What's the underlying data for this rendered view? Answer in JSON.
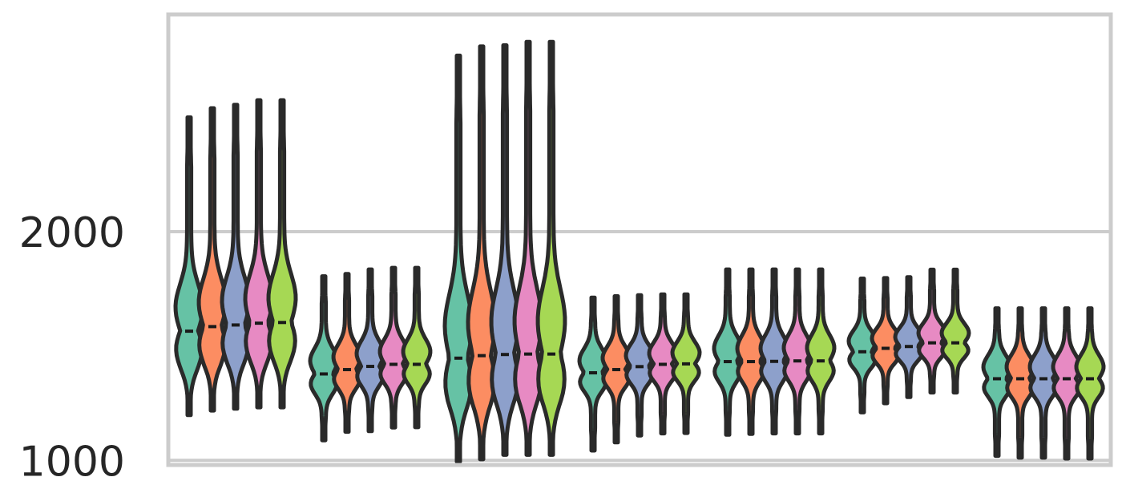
{
  "chart_data": {
    "type": "violin",
    "title": "",
    "xlabel": "",
    "ylabel": "",
    "ylim": [
      980,
      2950
    ],
    "y_ticks": [
      1000,
      2000
    ],
    "grid": true,
    "legend": "none",
    "palette": [
      "#66c2a5",
      "#fc8d62",
      "#8da0cb",
      "#e78ac3",
      "#a6d854"
    ],
    "groups": [
      {
        "violins": [
          {
            "min": 1198,
            "max": 2500,
            "median": 1565
          },
          {
            "min": 1218,
            "max": 2540,
            "median": 1585
          },
          {
            "min": 1226,
            "max": 2555,
            "median": 1592
          },
          {
            "min": 1232,
            "max": 2575,
            "median": 1600
          },
          {
            "min": 1232,
            "max": 2575,
            "median": 1603
          }
        ]
      },
      {
        "violins": [
          {
            "min": 1088,
            "max": 1805,
            "median": 1378
          },
          {
            "min": 1125,
            "max": 1815,
            "median": 1397
          },
          {
            "min": 1128,
            "max": 1835,
            "median": 1411
          },
          {
            "min": 1144,
            "max": 1842,
            "median": 1420
          },
          {
            "min": 1145,
            "max": 1842,
            "median": 1420
          }
        ]
      },
      {
        "violins": [
          {
            "min": 995,
            "max": 2770,
            "median": 1447
          },
          {
            "min": 1005,
            "max": 2810,
            "median": 1458
          },
          {
            "min": 1024,
            "max": 2815,
            "median": 1463
          },
          {
            "min": 1024,
            "max": 2830,
            "median": 1465
          },
          {
            "min": 1024,
            "max": 2830,
            "median": 1465
          }
        ]
      },
      {
        "violins": [
          {
            "min": 1043,
            "max": 1712,
            "median": 1383
          },
          {
            "min": 1079,
            "max": 1718,
            "median": 1397
          },
          {
            "min": 1109,
            "max": 1722,
            "median": 1410
          },
          {
            "min": 1118,
            "max": 1726,
            "median": 1420
          },
          {
            "min": 1120,
            "max": 1726,
            "median": 1422
          }
        ]
      },
      {
        "violins": [
          {
            "min": 1112,
            "max": 1835,
            "median": 1432
          },
          {
            "min": 1116,
            "max": 1835,
            "median": 1432
          },
          {
            "min": 1118,
            "max": 1835,
            "median": 1433
          },
          {
            "min": 1118,
            "max": 1835,
            "median": 1435
          },
          {
            "min": 1118,
            "max": 1835,
            "median": 1435
          }
        ]
      },
      {
        "violins": [
          {
            "min": 1210,
            "max": 1795,
            "median": 1475
          },
          {
            "min": 1250,
            "max": 1797,
            "median": 1490
          },
          {
            "min": 1277,
            "max": 1801,
            "median": 1498
          },
          {
            "min": 1297,
            "max": 1834,
            "median": 1514
          },
          {
            "min": 1297,
            "max": 1834,
            "median": 1514
          }
        ]
      },
      {
        "violins": [
          {
            "min": 1020,
            "max": 1665,
            "median": 1357
          },
          {
            "min": 1012,
            "max": 1665,
            "median": 1357
          },
          {
            "min": 1012,
            "max": 1665,
            "median": 1357
          },
          {
            "min": 1008,
            "max": 1665,
            "median": 1357
          },
          {
            "min": 1008,
            "max": 1665,
            "median": 1357
          }
        ]
      }
    ]
  }
}
